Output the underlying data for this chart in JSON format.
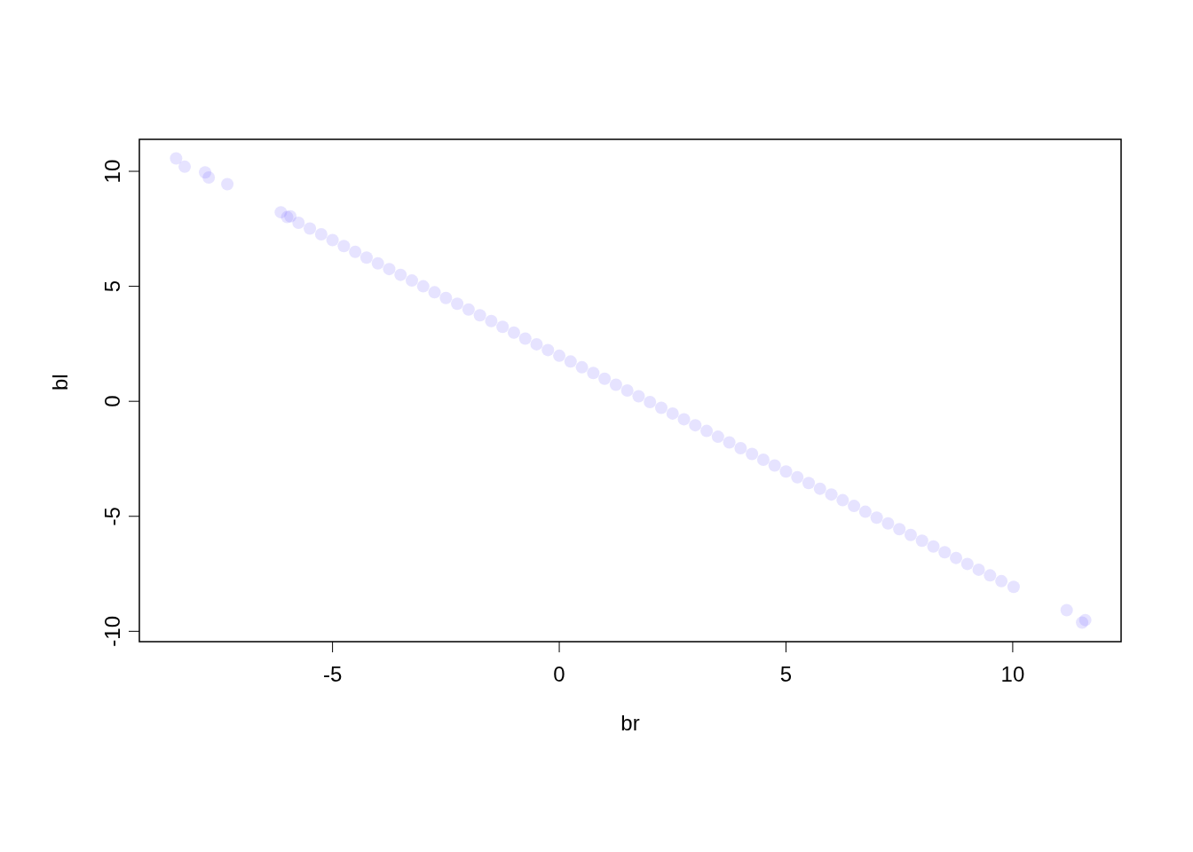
{
  "chart_data": {
    "type": "scatter",
    "xlabel": "br",
    "ylabel": "bl",
    "xlim": [
      -9.26,
      12.39
    ],
    "ylim": [
      -10.45,
      11.39
    ],
    "xticks": [
      -5,
      0,
      5,
      10
    ],
    "yticks": [
      -10,
      -5,
      0,
      5,
      10
    ],
    "marker": "circle",
    "series": [
      {
        "color": "#7466ff",
        "x": [
          -8.45,
          -8.26,
          -7.81,
          -7.73,
          -7.32,
          -6.14,
          -5.93,
          -6.0,
          -5.75,
          -5.5,
          -5.25,
          -5.0,
          -4.75,
          -4.5,
          -4.25,
          -4.0,
          -3.75,
          -3.5,
          -3.25,
          -3.0,
          -2.75,
          -2.5,
          -2.25,
          -2.0,
          -1.75,
          -1.5,
          -1.25,
          -1.0,
          -0.75,
          -0.5,
          -0.25,
          0,
          0.25,
          0.5,
          0.75,
          1.0,
          1.25,
          1.5,
          1.75,
          2.0,
          2.25,
          2.5,
          2.75,
          3.0,
          3.25,
          3.5,
          3.75,
          4.0,
          4.25,
          4.5,
          4.75,
          5.0,
          5.25,
          5.5,
          5.75,
          6.0,
          6.25,
          6.5,
          6.75,
          7.0,
          7.25,
          7.5,
          7.75,
          8.0,
          8.25,
          8.5,
          8.75,
          9.0,
          9.25,
          9.5,
          9.75,
          10.02,
          11.19,
          11.53,
          11.6
        ],
        "values": [
          10.56,
          10.2,
          9.95,
          9.73,
          9.44,
          8.22,
          8.04,
          8.01,
          7.76,
          7.51,
          7.26,
          7.01,
          6.75,
          6.5,
          6.25,
          6.0,
          5.75,
          5.5,
          5.25,
          5.0,
          4.74,
          4.49,
          4.24,
          3.99,
          3.74,
          3.49,
          3.24,
          2.99,
          2.73,
          2.48,
          2.23,
          1.98,
          1.73,
          1.48,
          1.23,
          0.98,
          0.72,
          0.47,
          0.22,
          -0.03,
          -0.28,
          -0.53,
          -0.78,
          -1.04,
          -1.29,
          -1.54,
          -1.79,
          -2.04,
          -2.29,
          -2.54,
          -2.79,
          -3.05,
          -3.3,
          -3.55,
          -3.8,
          -4.05,
          -4.3,
          -4.55,
          -4.8,
          -5.06,
          -5.31,
          -5.56,
          -5.81,
          -6.06,
          -6.31,
          -6.56,
          -6.81,
          -7.07,
          -7.32,
          -7.57,
          -7.82,
          -8.07,
          -9.08,
          -9.62,
          -9.51
        ]
      }
    ]
  }
}
